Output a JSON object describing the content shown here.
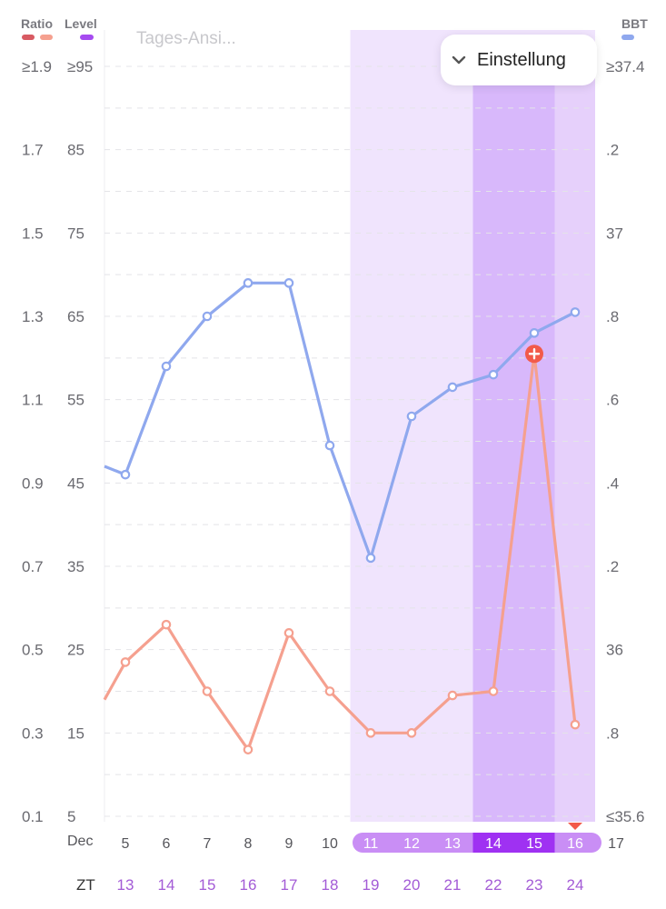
{
  "header": {
    "ratio_legend": "Ratio",
    "level_legend": "Level",
    "bbt_legend": "BBT",
    "view_label": "Tages-Ansi...",
    "settings_label": "Einstellung"
  },
  "colors": {
    "ratio_dark": "#d85a62",
    "ratio": "#f5a08f",
    "level": "#a64bf0",
    "bbt": "#8fa8ee",
    "band_light": "#f0e4fd",
    "band_dark": "#d8b8fb",
    "today_band": "#e6d0fb",
    "date_pill": "#c98ef5",
    "date_pill_dark": "#9f31f2",
    "marker": "#f25a4a"
  },
  "axes": {
    "ratio_ticks": [
      "≥1.9",
      "1.7",
      "1.5",
      "1.3",
      "1.1",
      "0.9",
      "0.7",
      "0.5",
      "0.3",
      "0.1"
    ],
    "level_ticks": [
      "≥95",
      "85",
      "75",
      "65",
      "55",
      "45",
      "35",
      "25",
      "15",
      "5"
    ],
    "bbt_ticks": [
      "≥37.4",
      ".2",
      "37",
      ".8",
      ".6",
      ".4",
      ".2",
      "36",
      ".8",
      "≤35.6"
    ],
    "month_label": "Dec",
    "zt_label": "ZT"
  },
  "chart_data": {
    "type": "line",
    "x_dates": [
      "5",
      "6",
      "7",
      "8",
      "9",
      "10",
      "11",
      "12",
      "13",
      "14",
      "15",
      "16"
    ],
    "next_date": "17",
    "zt": [
      "13",
      "14",
      "15",
      "16",
      "17",
      "18",
      "19",
      "20",
      "21",
      "22",
      "23",
      "24"
    ],
    "ratio_range": [
      0.1,
      1.9
    ],
    "level_range": [
      5,
      95
    ],
    "bbt_range": [
      35.6,
      37.4
    ],
    "series": [
      {
        "name": "BBT",
        "axis": "bbt",
        "values": [
          36.42,
          36.68,
          36.8,
          36.88,
          36.88,
          36.49,
          36.22,
          36.56,
          36.63,
          36.66,
          36.76,
          36.81
        ]
      },
      {
        "name": "Ratio",
        "axis": "ratio",
        "values": [
          0.47,
          0.56,
          0.4,
          0.26,
          0.54,
          0.4,
          0.3,
          0.3,
          0.39,
          0.4,
          1.21,
          0.32
        ]
      }
    ],
    "ratio_start_value": 0.38,
    "bbt_start_value": 36.44,
    "peak_marker_index": 10,
    "today_index": 11,
    "highlight_start_index": 6,
    "dark_highlight_indices": [
      9,
      10
    ],
    "grid": true
  }
}
